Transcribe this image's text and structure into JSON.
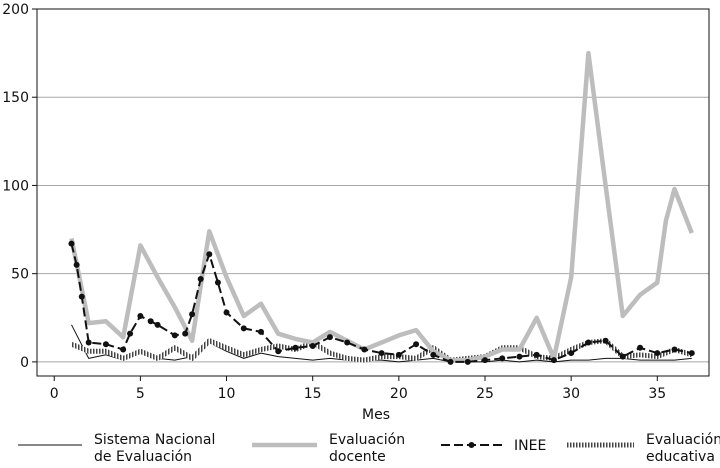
{
  "chart_data": {
    "type": "line",
    "title": "",
    "xlabel": "Mes",
    "ylabel": "",
    "xlim": [
      -1,
      38
    ],
    "ylim": [
      -8,
      200
    ],
    "xticks": [
      0,
      5,
      10,
      15,
      20,
      25,
      30,
      35
    ],
    "yticks": [
      0,
      50,
      100,
      150,
      200
    ],
    "grid": "horizontal",
    "legend_position": "bottom",
    "series": [
      {
        "name": "Sistema Nacional de Evaluación",
        "legend_lines": [
          "Sistema Nacional",
          "de Evaluación"
        ],
        "style": "thin-black",
        "x": [
          1,
          2,
          3,
          4,
          5,
          6,
          7,
          8,
          9,
          10,
          11,
          12,
          13,
          14,
          15,
          16,
          17,
          18,
          19,
          20,
          21,
          22,
          23,
          24,
          25,
          26,
          27,
          28,
          29,
          30,
          31,
          32,
          33,
          34,
          35,
          36,
          37
        ],
        "y": [
          21,
          2,
          4,
          1,
          7,
          2,
          1,
          3,
          11,
          6,
          2,
          5,
          3,
          2,
          1,
          2,
          1,
          1,
          1,
          0,
          1,
          2,
          0,
          0,
          0,
          1,
          0,
          1,
          0,
          1,
          1,
          2,
          2,
          1,
          1,
          1,
          2
        ]
      },
      {
        "name": "Evaluación docente",
        "legend_lines": [
          "Evaluación",
          "docente"
        ],
        "style": "thick-gray",
        "x": [
          1,
          2,
          3,
          4,
          5,
          6,
          7,
          8,
          9,
          10,
          11,
          12,
          13,
          14,
          15,
          16,
          17,
          18,
          19,
          20,
          21,
          22,
          23,
          24,
          25,
          26,
          27,
          28,
          29,
          30,
          31,
          32,
          33,
          34,
          35,
          35.5,
          36,
          37
        ],
        "y": [
          70,
          22,
          23,
          14,
          66,
          48,
          31,
          12,
          74,
          48,
          26,
          33,
          16,
          13,
          11,
          17,
          12,
          7,
          11,
          15,
          18,
          6,
          1,
          1,
          3,
          7,
          7,
          25,
          2,
          48,
          175,
          100,
          26,
          38,
          45,
          80,
          98,
          73
        ]
      },
      {
        "name": "INEE",
        "legend_lines": [
          "INEE"
        ],
        "style": "dash-dot-black",
        "x": [
          1,
          1.3,
          1.6,
          2,
          3,
          4,
          4.4,
          5,
          5.6,
          6,
          7,
          7.6,
          8,
          8.5,
          9,
          9.5,
          10,
          11,
          12,
          13,
          14,
          15,
          16,
          17,
          18,
          19,
          20,
          21,
          22,
          23,
          24,
          25,
          26,
          27,
          28,
          29,
          30,
          31,
          32,
          33,
          34,
          35,
          36,
          37
        ],
        "y": [
          67,
          55,
          37,
          11,
          10,
          7,
          16,
          26,
          23,
          21,
          15,
          16,
          27,
          47,
          61,
          45,
          28,
          19,
          17,
          6,
          8,
          9,
          14,
          11,
          7,
          5,
          4,
          10,
          4,
          0,
          0,
          1,
          2,
          3,
          4,
          1,
          5,
          11,
          12,
          3,
          8,
          5,
          7,
          5
        ]
      },
      {
        "name": "Evaluación educativa",
        "legend_lines": [
          "Evaluación",
          "educativa"
        ],
        "style": "hatched-thick",
        "x": [
          1,
          2,
          3,
          4,
          5,
          6,
          7,
          8,
          9,
          10,
          11,
          12,
          13,
          14,
          15,
          16,
          17,
          18,
          19,
          20,
          21,
          22,
          23,
          24,
          25,
          26,
          27,
          28,
          29,
          30,
          31,
          32,
          33,
          34,
          35,
          36,
          37
        ],
        "y": [
          10,
          6,
          6,
          2,
          6,
          2,
          8,
          2,
          12,
          8,
          4,
          7,
          9,
          7,
          11,
          5,
          2,
          1,
          3,
          3,
          2,
          8,
          1,
          2,
          3,
          8,
          8,
          3,
          2,
          7,
          11,
          12,
          3,
          4,
          3,
          7,
          4
        ]
      }
    ]
  }
}
